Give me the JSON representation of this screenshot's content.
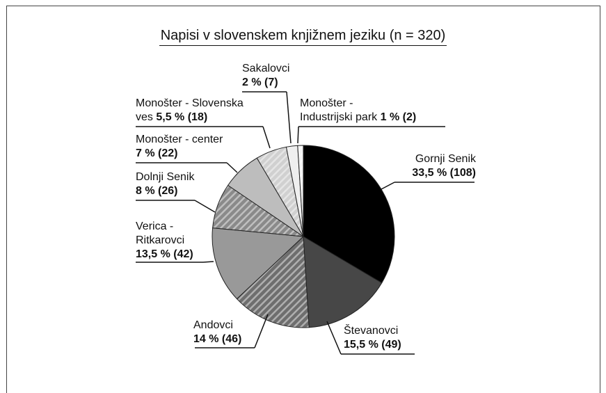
{
  "chart_data": {
    "type": "pie",
    "title": "Napisi v slovenskem knjižnem jeziku (n = 320)",
    "categories": [
      "Gornji Senik",
      "Števanovci",
      "Andovci",
      "Verica -\nRitkarovci",
      "Dolnji Senik",
      "Monošter - center",
      "Monošter - Slovenska\nves",
      "Sakalovci",
      "Monošter -\nIndustrijski park"
    ],
    "values": [
      33.5,
      15.5,
      14,
      13.5,
      8,
      7,
      5.5,
      2,
      1
    ],
    "value_labels": [
      "33,5 % (108)",
      "15,5 % (49)",
      "14 % (46)",
      "13,5 % (42)",
      "8 % (26)",
      "7 % (22)",
      "5,5 % (18)",
      "2 % (7)",
      "1 % (2)"
    ],
    "colors": [
      "#000000",
      "#474747",
      "#6e6e6e",
      "#999999",
      "#8a8a8a",
      "#bdbdbd",
      "#d0d0d0",
      "#efefef",
      "#f4f4f4"
    ],
    "hatch": [
      false,
      false,
      true,
      false,
      true,
      false,
      true,
      false,
      true
    ]
  }
}
